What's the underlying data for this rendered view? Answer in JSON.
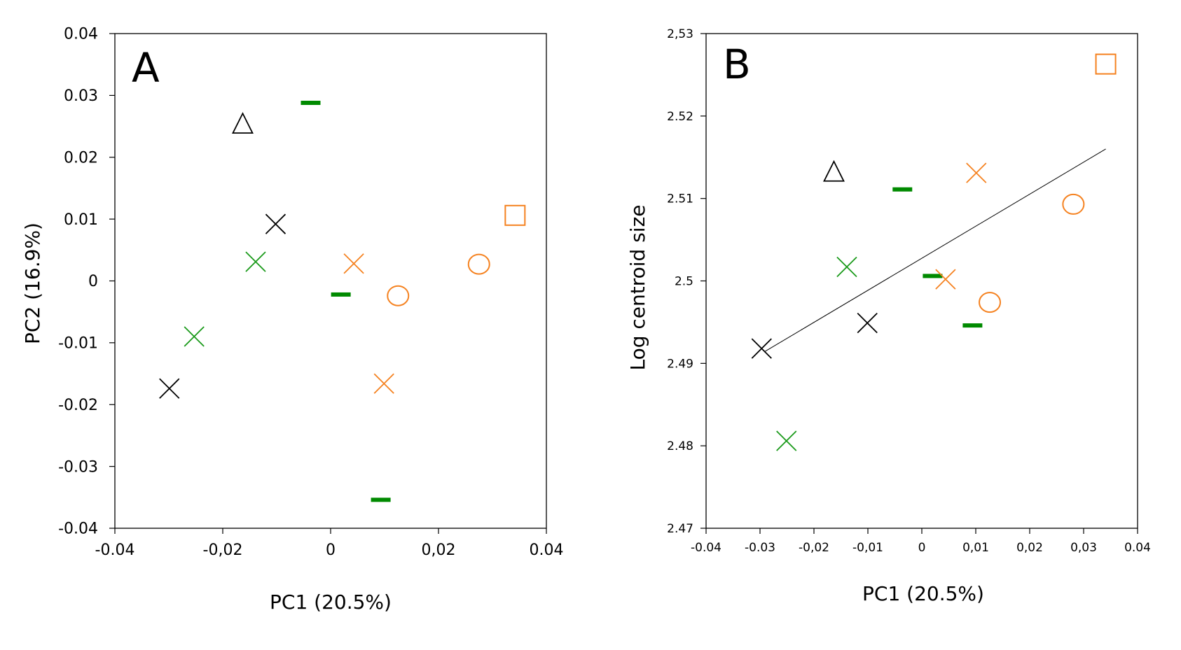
{
  "chart_data": [
    {
      "type": "scatter",
      "panel_label": "A",
      "xlabel": "PC1 (20.5%)",
      "ylabel": "PC2 (16.9%)",
      "xlim": [
        -0.04,
        0.04
      ],
      "ylim": [
        -0.04,
        0.04
      ],
      "x_ticks": [
        -0.04,
        -0.02,
        0,
        0.02,
        0.04
      ],
      "x_tick_labels": [
        "-0.04",
        "-0,02",
        "0",
        "0,02",
        "0.04"
      ],
      "y_ticks": [
        0.04,
        0.03,
        0.02,
        0.01,
        0,
        -0.01,
        -0.02,
        -0.03,
        -0.04
      ],
      "y_tick_labels": [
        "0.04",
        "0.03",
        "0.02",
        "0.01",
        "0",
        "-0.01",
        "-0.02",
        "-0.03",
        "-0.04"
      ],
      "grid": false,
      "points": [
        {
          "x": -0.0163,
          "y": 0.0255,
          "marker": "triangle",
          "color": "#000000"
        },
        {
          "x": -0.0037,
          "y": 0.0288,
          "marker": "dash",
          "color": "#008a00"
        },
        {
          "x": -0.0102,
          "y": 0.0092,
          "marker": "cross",
          "color": "#000000"
        },
        {
          "x": -0.0139,
          "y": 0.0031,
          "marker": "cross",
          "color": "#1a9a1a"
        },
        {
          "x": 0.0043,
          "y": 0.0028,
          "marker": "cross",
          "color": "#f58220"
        },
        {
          "x": 0.0275,
          "y": 0.0027,
          "marker": "circle",
          "color": "#f58220"
        },
        {
          "x": 0.0342,
          "y": 0.0106,
          "marker": "square",
          "color": "#f58220"
        },
        {
          "x": 0.0019,
          "y": -0.0022,
          "marker": "dash",
          "color": "#008a00"
        },
        {
          "x": 0.0125,
          "y": -0.0024,
          "marker": "circle",
          "color": "#f58220"
        },
        {
          "x": -0.0253,
          "y": -0.009,
          "marker": "cross",
          "color": "#1a9a1a"
        },
        {
          "x": -0.0299,
          "y": -0.0174,
          "marker": "cross",
          "color": "#000000"
        },
        {
          "x": 0.0099,
          "y": -0.0166,
          "marker": "cross",
          "color": "#f58220"
        },
        {
          "x": 0.0093,
          "y": -0.0354,
          "marker": "dash",
          "color": "#008a00"
        }
      ]
    },
    {
      "type": "scatter",
      "panel_label": "B",
      "xlabel": "PC1 (20.5%)",
      "ylabel": "Log centroid size",
      "xlim": [
        -0.04,
        0.04
      ],
      "ylim": [
        2.47,
        2.53
      ],
      "x_ticks": [
        -0.04,
        -0.03,
        -0.02,
        -0.01,
        0,
        0.01,
        0.02,
        0.03,
        0.04
      ],
      "x_tick_labels": [
        "-0.04",
        "-0.03",
        "-0,02",
        "-0,01",
        "0",
        "0,01",
        "0,02",
        "0,03",
        "0.04"
      ],
      "y_ticks": [
        2.53,
        2.52,
        2.51,
        2.5,
        2.49,
        2.48,
        2.47
      ],
      "y_tick_labels": [
        "2,53",
        "2.52",
        "2.51",
        "2.5",
        "2.49",
        "2.48",
        "2.47"
      ],
      "grid": false,
      "regression_line": {
        "x": [
          -0.0292,
          0.0341
        ],
        "y": [
          2.4914,
          2.516
        ],
        "color": "#000000"
      },
      "points": [
        {
          "x": 0.0341,
          "y": 2.5263,
          "marker": "square",
          "color": "#f58220"
        },
        {
          "x": -0.0163,
          "y": 2.5133,
          "marker": "triangle",
          "color": "#000000"
        },
        {
          "x": 0.0101,
          "y": 2.5131,
          "marker": "cross",
          "color": "#f58220"
        },
        {
          "x": -0.0036,
          "y": 2.5111,
          "marker": "dash",
          "color": "#008a00"
        },
        {
          "x": 0.0281,
          "y": 2.5093,
          "marker": "circle",
          "color": "#f58220"
        },
        {
          "x": -0.0139,
          "y": 2.5017,
          "marker": "cross",
          "color": "#1a9a1a"
        },
        {
          "x": 0.002,
          "y": 2.5006,
          "marker": "dash",
          "color": "#008a00"
        },
        {
          "x": 0.0044,
          "y": 2.5002,
          "marker": "cross",
          "color": "#f58220"
        },
        {
          "x": 0.0126,
          "y": 2.4974,
          "marker": "circle",
          "color": "#f58220"
        },
        {
          "x": -0.0101,
          "y": 2.4949,
          "marker": "cross",
          "color": "#000000"
        },
        {
          "x": 0.0094,
          "y": 2.4946,
          "marker": "dash",
          "color": "#008a00"
        },
        {
          "x": -0.0297,
          "y": 2.4918,
          "marker": "cross",
          "color": "#000000"
        },
        {
          "x": -0.0251,
          "y": 2.4806,
          "marker": "cross",
          "color": "#1a9a1a"
        }
      ]
    }
  ]
}
